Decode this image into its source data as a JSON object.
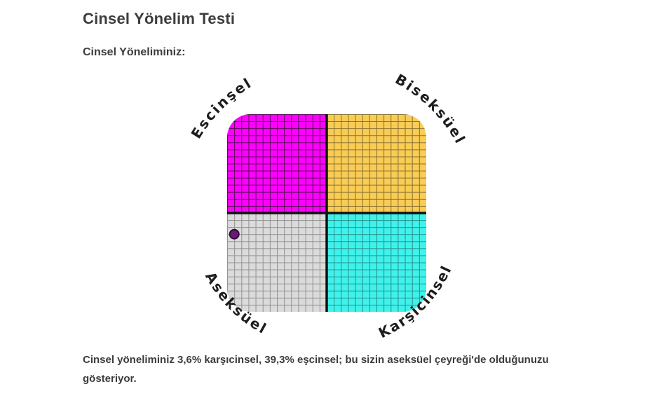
{
  "page": {
    "title": "Cinsel Yönelim Testi",
    "section_heading": "Cinsel Yöneliminiz:",
    "result_text": "Cinsel yöneliminiz 3,6% karşıcinsel, 39,3% eşcinsel; bu sizin aseksüel çeyreği'de olduğunuzu gösteriyor."
  },
  "chart_data": {
    "type": "scatter",
    "subtype": "quadrant-grid",
    "quadrant_labels": {
      "top_left": "Escinşel",
      "top_right": "Biseksüel",
      "bottom_left": "Aseksüel",
      "bottom_right": "Karşicinsel"
    },
    "quadrant_colors": {
      "top_left": "#fb02fb",
      "top_right": "#f9cc55",
      "bottom_left": "#dbdbdb",
      "bottom_right": "#3ff2eb"
    },
    "grid_line_colors": {
      "top_left": "#5a0a5a",
      "top_right": "#8a7330",
      "bottom_left": "#919191",
      "bottom_right": "#26928e"
    },
    "grid_cells_per_quadrant": 14,
    "axis_cross_color": "#111111",
    "point": {
      "x_karsicinsel_pct": 3.6,
      "y_escinsel_pct": 39.3,
      "fill": "#6b1a74",
      "stroke": "#310a38",
      "quadrant": "aseksüel"
    }
  }
}
